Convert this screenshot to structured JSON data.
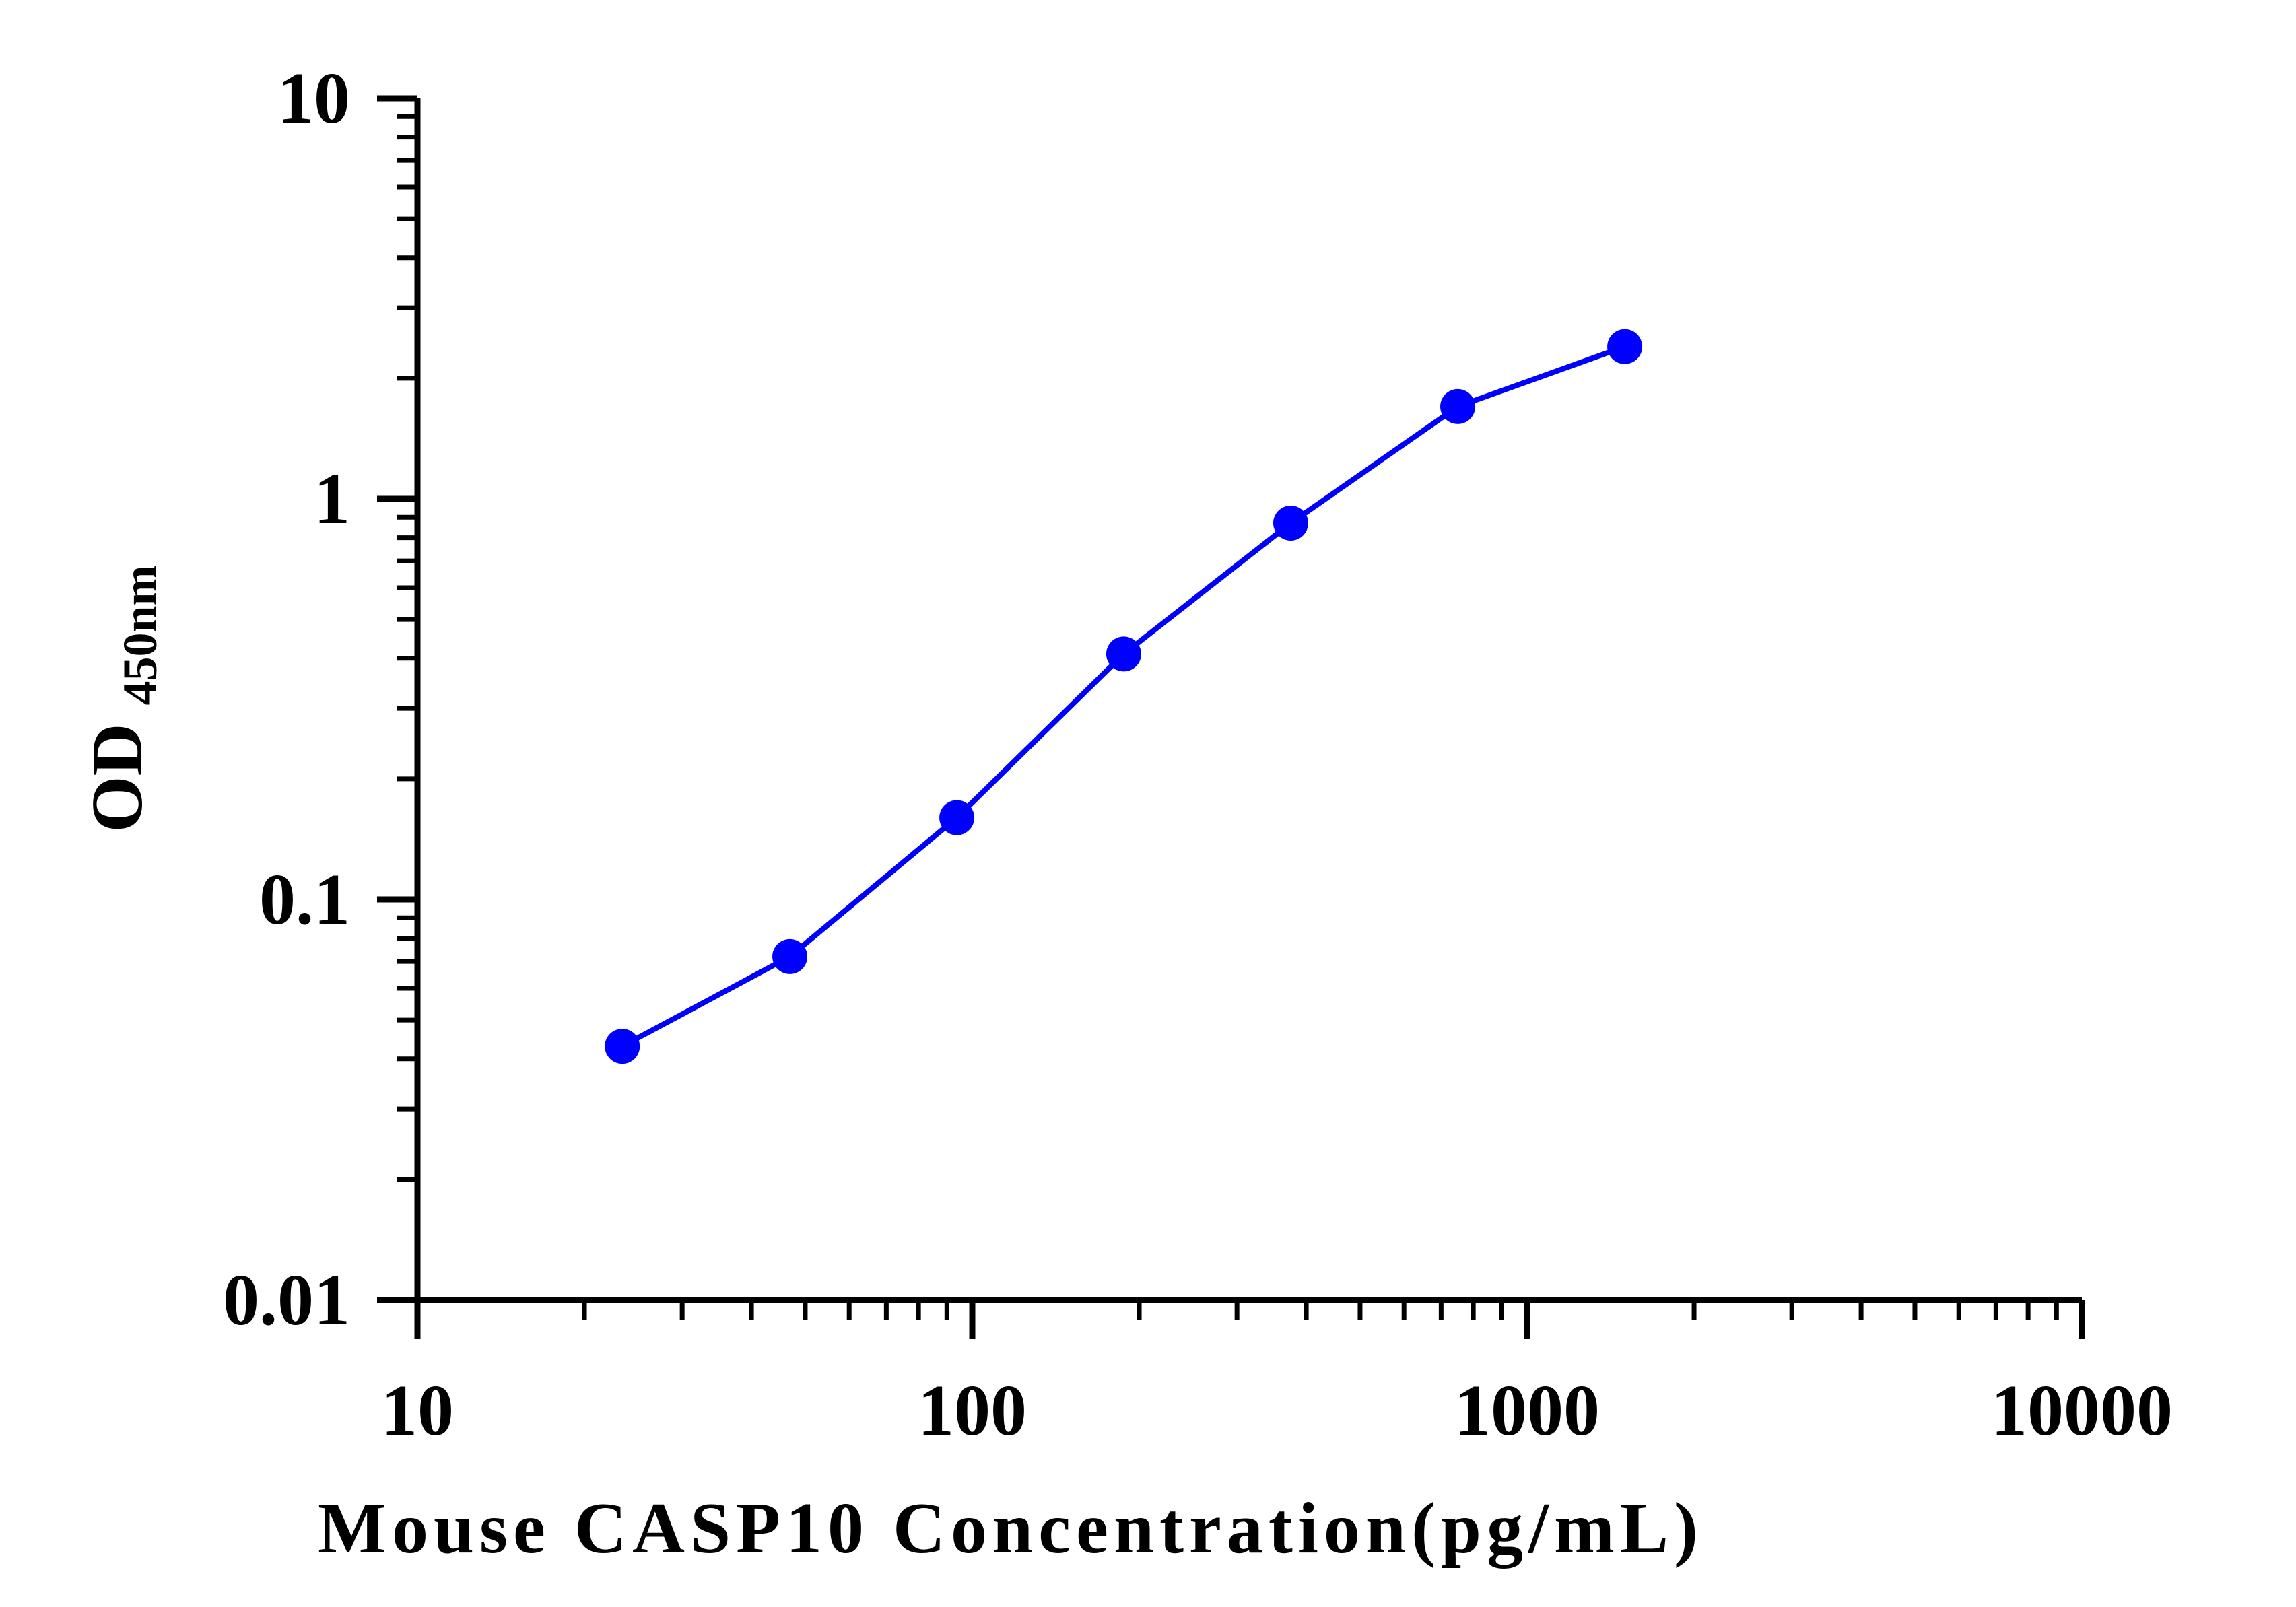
{
  "chart_data": {
    "type": "line",
    "title": "",
    "xlabel": "Mouse CASP10 Concentration(pg/mL)",
    "ylabel": "OD",
    "ylabel_subscript": "450nm",
    "x_scale": "log",
    "y_scale": "log",
    "xlim": [
      10,
      10000
    ],
    "ylim": [
      0.01,
      10
    ],
    "x_ticks": [
      10,
      100,
      1000,
      10000
    ],
    "x_tick_labels": [
      "10",
      "100",
      "1000",
      "10000"
    ],
    "y_ticks": [
      0.01,
      0.1,
      1,
      10
    ],
    "y_tick_labels": [
      "0.01",
      "0.1",
      "1",
      "10"
    ],
    "grid": false,
    "legend": "none",
    "series": [
      {
        "color": "#0000ff",
        "x": [
          23.4,
          46.9,
          93.8,
          187.5,
          375,
          750,
          1500
        ],
        "y": [
          0.043,
          0.072,
          0.16,
          0.41,
          0.87,
          1.7,
          2.4
        ]
      }
    ]
  }
}
